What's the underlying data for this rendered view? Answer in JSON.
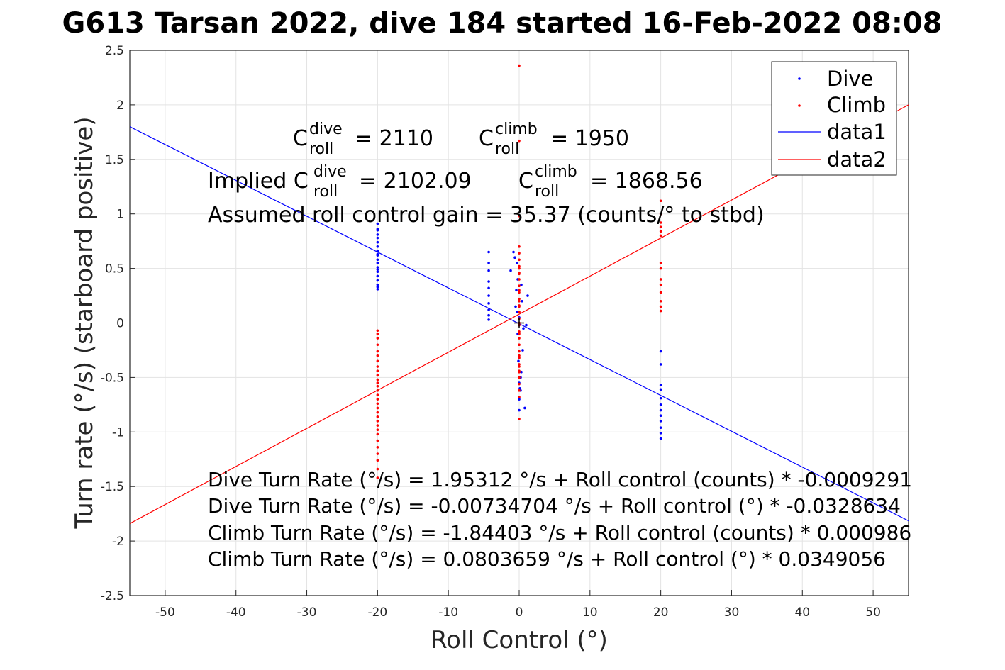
{
  "chart_data": {
    "type": "scatter",
    "title": "G613 Tarsan 2022, dive 184 started 16-Feb-2022 08:08",
    "xlabel": "Roll Control (°)",
    "ylabel": "Turn rate (°/s) (starboard positive)",
    "xlim": [
      -55,
      55
    ],
    "ylim": [
      -2.5,
      2.5
    ],
    "xticks": [
      -50,
      -40,
      -30,
      -20,
      -10,
      0,
      10,
      20,
      30,
      40,
      50
    ],
    "xtick_labels": [
      "-50",
      "-40",
      "-30",
      "-20",
      "-10",
      "0",
      "10",
      "20",
      "30",
      "40",
      "50"
    ],
    "yticks": [
      -2.5,
      -2,
      -1.5,
      -1,
      -0.5,
      0,
      0.5,
      1,
      1.5,
      2,
      2.5
    ],
    "ytick_labels": [
      "-2.5",
      "-2",
      "-1.5",
      "-1",
      "-0.5",
      "0",
      "0.5",
      "1",
      "1.5",
      "2",
      "2.5"
    ],
    "grid": true,
    "legend_position": "top-right",
    "series": [
      {
        "name": "Dive",
        "kind": "points",
        "color": "#0000ff",
        "x": [
          -20,
          -20,
          -20,
          -20,
          -20,
          -20,
          -20,
          -20,
          -20,
          -20,
          -20,
          -20,
          -20,
          -20,
          -20,
          -20,
          -20,
          -20,
          -20,
          -20,
          -4.3,
          -4.3,
          -4.3,
          -4.3,
          -4.3,
          -4.3,
          -4.3,
          -4.3,
          -4.3,
          -4.3,
          -1.2,
          -0.8,
          -0.6,
          -0.4,
          -0.3,
          -0.2,
          -0.1,
          0,
          0,
          0,
          0.1,
          0.2,
          0.3,
          0.4,
          0.6,
          0.8,
          1.0,
          1.2,
          0.3,
          -0.3,
          0,
          0.5,
          -0.5,
          0.2,
          -0.2,
          20,
          20,
          20,
          20,
          20,
          20,
          20,
          20,
          20,
          20,
          20,
          20
        ],
        "y": [
          0.91,
          0.85,
          0.81,
          0.78,
          0.74,
          0.7,
          0.66,
          0.62,
          0.58,
          0.55,
          0.51,
          0.47,
          0.43,
          0.39,
          0.35,
          0.31,
          0.86,
          0.63,
          0.49,
          0.33,
          0.65,
          0.55,
          0.48,
          0.38,
          0.32,
          0.25,
          0.18,
          0.12,
          0.07,
          0.03,
          0.48,
          0.65,
          0.6,
          0.3,
          0.1,
          -0.1,
          -0.35,
          -0.55,
          -0.7,
          -0.8,
          -0.6,
          -0.5,
          0.35,
          0.2,
          -0.05,
          -0.78,
          -0.02,
          0.25,
          -0.45,
          0.55,
          0.05,
          -0.25,
          0.15,
          -0.62,
          0.4,
          -0.26,
          -0.38,
          -0.57,
          -0.61,
          -0.69,
          -0.75,
          -0.8,
          -0.85,
          -0.9,
          -0.96,
          -1.01,
          -1.06
        ]
      },
      {
        "name": "Climb",
        "kind": "points",
        "color": "#ff0000",
        "x": [
          -20,
          -20,
          -20,
          -20,
          -20,
          -20,
          -20,
          -20,
          -20,
          -20,
          -20,
          -20,
          -20,
          -20,
          -20,
          -20,
          -20,
          -20,
          -20,
          -20,
          -20,
          -20,
          -20,
          -20,
          -20,
          -20,
          -20,
          -20,
          -20,
          -20,
          0,
          0,
          0,
          0,
          0,
          0,
          0,
          0,
          0,
          0,
          0,
          0,
          0,
          0,
          0,
          0,
          0,
          0,
          0,
          0,
          0,
          0,
          0,
          0,
          0,
          0,
          0,
          0,
          0,
          0,
          0,
          0,
          0,
          0,
          0,
          0,
          0,
          0,
          0,
          0,
          20,
          20,
          20,
          20,
          20,
          20,
          20,
          20,
          20,
          20,
          20,
          20,
          20,
          20
        ],
        "y": [
          -0.07,
          -0.1,
          -0.14,
          -0.2,
          -0.26,
          -0.3,
          -0.35,
          -0.4,
          -0.44,
          -0.48,
          -0.52,
          -0.55,
          -0.58,
          -0.62,
          -0.66,
          -0.7,
          -0.74,
          -0.78,
          -0.82,
          -0.86,
          -0.9,
          -0.94,
          -0.98,
          -1.02,
          -1.08,
          -1.14,
          -1.2,
          -1.26,
          -1.34,
          -1.42,
          2.36,
          1.67,
          0.98,
          0.7,
          0.64,
          0.58,
          0.52,
          0.46,
          0.4,
          0.34,
          0.28,
          0.22,
          0.16,
          0.1,
          0.04,
          -0.02,
          -0.08,
          -0.14,
          -0.2,
          -0.26,
          -0.32,
          -0.38,
          -0.44,
          -0.5,
          -0.56,
          -0.62,
          -0.68,
          -0.88,
          0.5,
          0.3,
          0.1,
          -0.1,
          -0.3,
          -0.4,
          0.2,
          0.0,
          -0.2,
          0.45,
          -0.45,
          0.15,
          1.12,
          1.0,
          0.92,
          0.88,
          0.84,
          0.8,
          0.55,
          0.5,
          0.4,
          0.35,
          0.28,
          0.2,
          0.15,
          0.11
        ]
      },
      {
        "name": "data1",
        "kind": "line",
        "color": "#0000ff",
        "x": [
          -55,
          55
        ],
        "y": [
          1.8001,
          -1.8148
        ]
      },
      {
        "name": "data2",
        "kind": "line",
        "color": "#ff0000",
        "x": [
          -55,
          55
        ],
        "y": [
          -1.8395,
          2.0002
        ]
      }
    ],
    "center_marker": {
      "x": 0,
      "y": 0,
      "symbol": "+"
    },
    "annotations": {
      "c_dive": "= 2110",
      "c_climb": "= 1950",
      "implied_prefix": "Implied C",
      "implied_dive": "= 2102.09",
      "implied_climb": "= 1868.56",
      "c_letter": "C",
      "sup_dive": "dive",
      "sup_climb": "climb",
      "sub_roll": "roll",
      "gain": "Assumed roll control gain = 35.37 (counts/° to stbd)",
      "eq1": "Dive Turn Rate (°/s) = 1.95312 °/s + Roll control (counts) * -0.0009291",
      "eq2": "Dive Turn Rate (°/s) = -0.00734704 °/s + Roll control (°) * -0.0328634",
      "eq3": "Climb Turn Rate (°/s) = -1.84403 °/s + Roll control (counts) * 0.000986",
      "eq4": "Climb Turn Rate (°/s) = 0.0803659 °/s + Roll control (°) * 0.0349056"
    }
  }
}
